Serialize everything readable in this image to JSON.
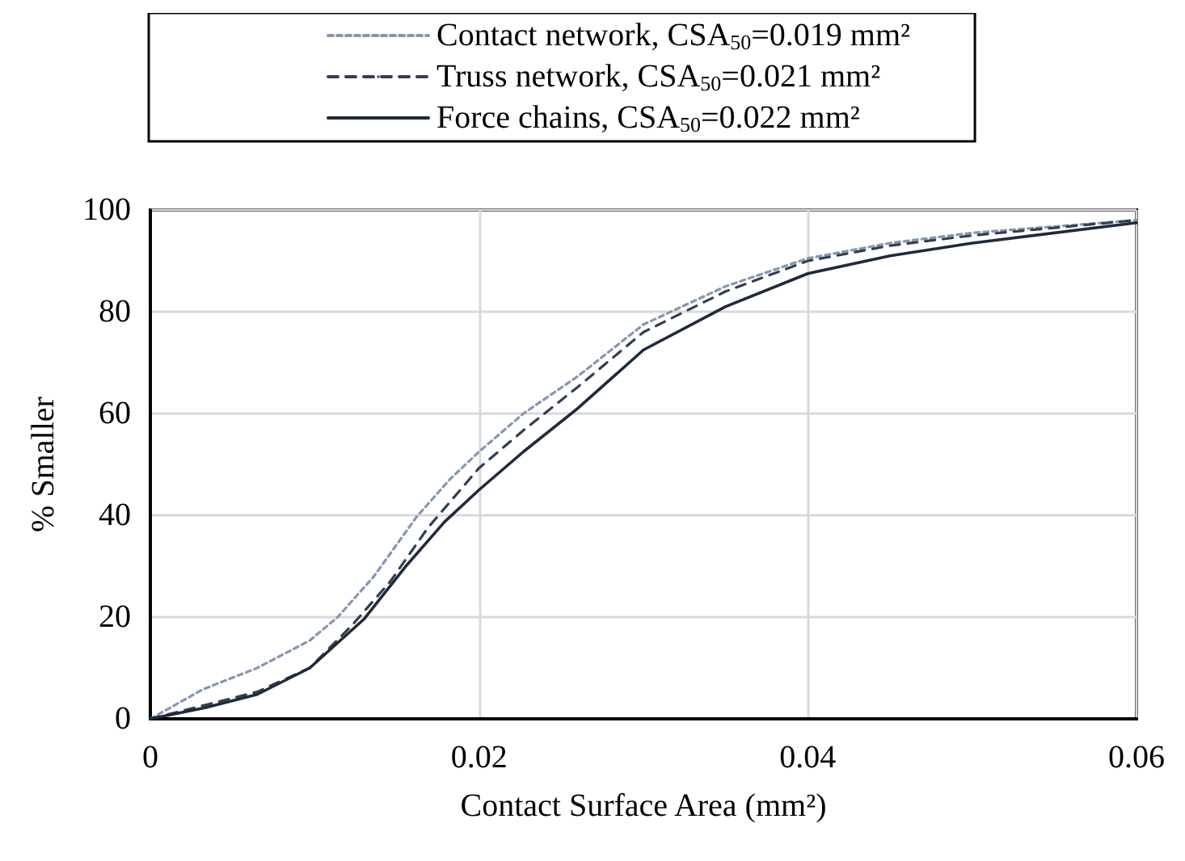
{
  "chart_data": {
    "type": "line",
    "xlabel": "Contact Surface Area (mm²)",
    "ylabel": "% Smaller",
    "x": [
      0,
      0.0032,
      0.0065,
      0.0097,
      0.0114,
      0.0136,
      0.0162,
      0.0182,
      0.02,
      0.0227,
      0.026,
      0.03,
      0.035,
      0.04,
      0.045,
      0.05,
      0.06
    ],
    "series": [
      {
        "name": "Contact network, CSA$_{50}$=0.019 mm²",
        "color": "#8497b0",
        "line_style": "dotted",
        "values": [
          0,
          5.8,
          10,
          15.4,
          20,
          28,
          39.7,
          47,
          52.5,
          60,
          67.3,
          77.5,
          85,
          90.5,
          93.5,
          95.5,
          98
        ]
      },
      {
        "name": "Truss network, CSA$_{50}$=0.021 mm²",
        "color": "#333f50",
        "line_style": "dashed",
        "x": [
          0,
          0.0032,
          0.0065,
          0.0097,
          0.0123,
          0.0146,
          0.0169,
          0.02,
          0.0227,
          0.026,
          0.03,
          0.035,
          0.04,
          0.045,
          0.05,
          0.06
        ],
        "values": [
          0,
          2.6,
          5.3,
          10,
          18.5,
          27,
          37.6,
          49.3,
          56.7,
          65.2,
          76,
          84,
          90,
          93,
          95,
          98
        ]
      },
      {
        "name": "Force chains, CSA$_{50}$=0.022 mm²",
        "color": "#1f2a3c",
        "line_style": "solid",
        "x": [
          0,
          0.0032,
          0.0065,
          0.0097,
          0.013,
          0.0156,
          0.0179,
          0.02,
          0.0227,
          0.026,
          0.03,
          0.035,
          0.04,
          0.045,
          0.05,
          0.06
        ],
        "values": [
          0,
          2.1,
          4.8,
          10,
          19.6,
          30.2,
          38.7,
          45,
          52.5,
          61,
          72.5,
          81,
          87.5,
          91,
          93.5,
          97.5
        ]
      }
    ],
    "xlim": [
      0,
      0.06
    ],
    "xticks": [
      0,
      0.02,
      0.04,
      0.06
    ],
    "ylim": [
      0,
      100
    ],
    "yticks": [
      0,
      20,
      40,
      60,
      80,
      100
    ],
    "grid": true,
    "legend": "top",
    "marker": "none"
  }
}
